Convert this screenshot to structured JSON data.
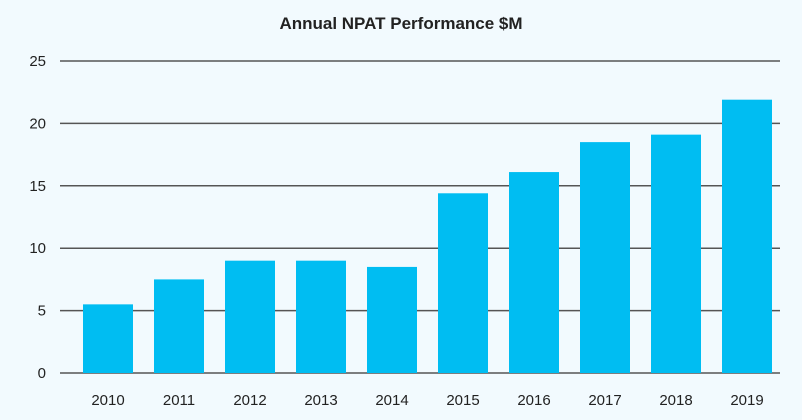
{
  "chart_data": {
    "type": "bar",
    "title": "Annual NPAT Performance $M",
    "xlabel": "",
    "ylabel": "",
    "categories": [
      "2010",
      "2011",
      "2012",
      "2013",
      "2014",
      "2015",
      "2016",
      "2017",
      "2018",
      "2019"
    ],
    "values": [
      5.5,
      7.5,
      9.0,
      9.0,
      8.5,
      14.4,
      16.1,
      18.5,
      19.1,
      21.9
    ],
    "ylim": [
      0,
      25
    ],
    "yticks": [
      0,
      5,
      10,
      15,
      20,
      25
    ],
    "grid": true,
    "legend": "none",
    "colors": {
      "bar": "#00bdf2",
      "grid": "#555555",
      "text": "#222222",
      "background": "#f2fafe"
    }
  }
}
